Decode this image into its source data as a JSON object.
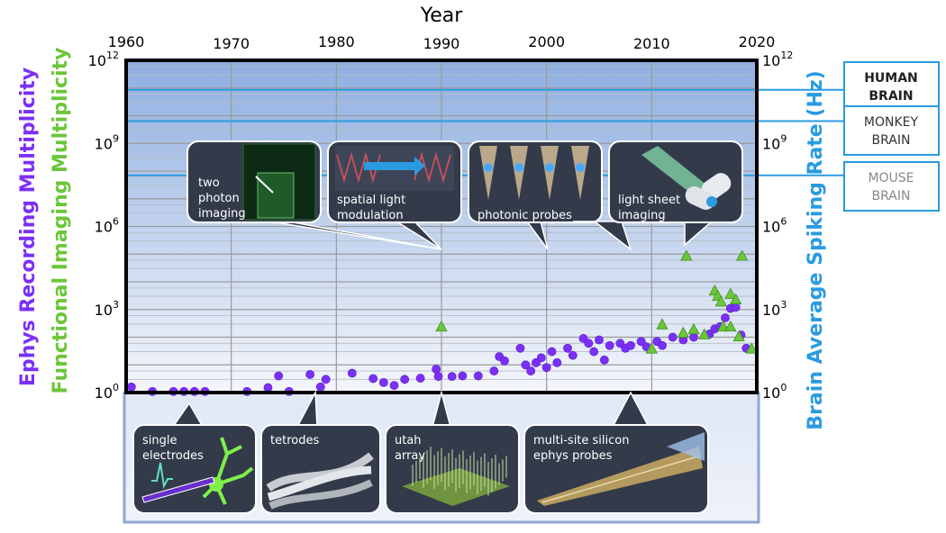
{
  "chart_data": {
    "type": "scatter",
    "title": "Year",
    "xlabel": "Year",
    "ylabel_left_1": "Ephys Recording Multiplicity",
    "ylabel_left_2": "Functional Imaging Multiplicity",
    "ylabel_right": "Brain Average Spiking Rate (Hz)",
    "x_ticks": [
      "1960",
      "1970",
      "1980",
      "1990",
      "2000",
      "2010",
      "2020"
    ],
    "xlim": [
      1960,
      2020
    ],
    "y_scale": "log",
    "ylim": [
      1,
      1000000000000
    ],
    "y_ticks": [
      {
        "value": 1,
        "base": "10",
        "exp": "0"
      },
      {
        "value": 1000,
        "base": "10",
        "exp": "3"
      },
      {
        "value": 1000000,
        "base": "10",
        "exp": "6"
      },
      {
        "value": 1000000000,
        "base": "10",
        "exp": "9"
      },
      {
        "value": 1000000000000,
        "base": "10",
        "exp": "12"
      }
    ],
    "grid": true,
    "colors": {
      "ephys": "#7b2ff7",
      "imaging": "#6cc63a",
      "brain_rate": "#2a9be0",
      "plot_top": "#8eaee0",
      "plot_bottom": "#f4f6fb"
    },
    "brain_levels": [
      {
        "name": "HUMAN BRAIN",
        "line1": "HUMAN",
        "line2": "BRAIN",
        "value": 86000000000,
        "bold": true,
        "text_color": "#222222"
      },
      {
        "name": "MONKEY BRAIN",
        "line1": "MONKEY",
        "line2": "BRAIN",
        "value": 6400000000,
        "bold": false,
        "text_color": "#333333"
      },
      {
        "name": "MOUSE BRAIN",
        "line1": "MOUSE",
        "line2": "BRAIN",
        "value": 70000000,
        "bold": false,
        "text_color": "#888888"
      }
    ],
    "series": [
      {
        "name": "Ephys Recording Multiplicity",
        "marker": "circle",
        "points": [
          {
            "x": 1960.5,
            "y": 1.6
          },
          {
            "x": 1962.5,
            "y": 1.1
          },
          {
            "x": 1964.5,
            "y": 1.1
          },
          {
            "x": 1965.5,
            "y": 1.1
          },
          {
            "x": 1966.5,
            "y": 1.1
          },
          {
            "x": 1967.5,
            "y": 1.1
          },
          {
            "x": 1971.5,
            "y": 1.1
          },
          {
            "x": 1973.5,
            "y": 1.5
          },
          {
            "x": 1974.5,
            "y": 4
          },
          {
            "x": 1975.5,
            "y": 1.1
          },
          {
            "x": 1977.5,
            "y": 4.5
          },
          {
            "x": 1978.5,
            "y": 1.6
          },
          {
            "x": 1979,
            "y": 3
          },
          {
            "x": 1981.5,
            "y": 5
          },
          {
            "x": 1983.5,
            "y": 3.2
          },
          {
            "x": 1984.5,
            "y": 2.3
          },
          {
            "x": 1985.5,
            "y": 1.8
          },
          {
            "x": 1986.5,
            "y": 3
          },
          {
            "x": 1988,
            "y": 3.3
          },
          {
            "x": 1989.5,
            "y": 7
          },
          {
            "x": 1989.7,
            "y": 3.8
          },
          {
            "x": 1991,
            "y": 3.8
          },
          {
            "x": 1992,
            "y": 4
          },
          {
            "x": 1993.5,
            "y": 4
          },
          {
            "x": 1995,
            "y": 6
          },
          {
            "x": 1995.5,
            "y": 20
          },
          {
            "x": 1996,
            "y": 14
          },
          {
            "x": 1997.5,
            "y": 40
          },
          {
            "x": 1998,
            "y": 10
          },
          {
            "x": 1998.5,
            "y": 6
          },
          {
            "x": 1999,
            "y": 12
          },
          {
            "x": 1999.5,
            "y": 18
          },
          {
            "x": 2000,
            "y": 8
          },
          {
            "x": 2000.5,
            "y": 30
          },
          {
            "x": 2001,
            "y": 12
          },
          {
            "x": 2002,
            "y": 40
          },
          {
            "x": 2002.5,
            "y": 22
          },
          {
            "x": 2003.5,
            "y": 90
          },
          {
            "x": 2004,
            "y": 60
          },
          {
            "x": 2004.5,
            "y": 30
          },
          {
            "x": 2005,
            "y": 80
          },
          {
            "x": 2005.5,
            "y": 15
          },
          {
            "x": 2006,
            "y": 50
          },
          {
            "x": 2007,
            "y": 60
          },
          {
            "x": 2007.5,
            "y": 40
          },
          {
            "x": 2008,
            "y": 50
          },
          {
            "x": 2009,
            "y": 70
          },
          {
            "x": 2009.5,
            "y": 45
          },
          {
            "x": 2010.5,
            "y": 70
          },
          {
            "x": 2011,
            "y": 50
          },
          {
            "x": 2012,
            "y": 100
          },
          {
            "x": 2013,
            "y": 80
          },
          {
            "x": 2014,
            "y": 100
          },
          {
            "x": 2015.5,
            "y": 130
          },
          {
            "x": 2016,
            "y": 200
          },
          {
            "x": 2016.5,
            "y": 240
          },
          {
            "x": 2017,
            "y": 500
          },
          {
            "x": 2017.5,
            "y": 1100
          },
          {
            "x": 2018,
            "y": 1200
          },
          {
            "x": 2018.5,
            "y": 120
          },
          {
            "x": 2019,
            "y": 40
          }
        ]
      },
      {
        "name": "Functional Imaging Multiplicity",
        "marker": "triangle",
        "points": [
          {
            "x": 1990,
            "y": 250
          },
          {
            "x": 2010,
            "y": 40
          },
          {
            "x": 2011,
            "y": 300
          },
          {
            "x": 2013,
            "y": 150
          },
          {
            "x": 2013.3,
            "y": 90000
          },
          {
            "x": 2014,
            "y": 200
          },
          {
            "x": 2015,
            "y": 130
          },
          {
            "x": 2016,
            "y": 5000
          },
          {
            "x": 2016.3,
            "y": 3200
          },
          {
            "x": 2016.6,
            "y": 2000
          },
          {
            "x": 2016.8,
            "y": 250
          },
          {
            "x": 2017.5,
            "y": 250
          },
          {
            "x": 2017.5,
            "y": 3800
          },
          {
            "x": 2018,
            "y": 2400
          },
          {
            "x": 2018.3,
            "y": 110
          },
          {
            "x": 2018.6,
            "y": 90000
          },
          {
            "x": 2019.5,
            "y": 40
          }
        ]
      }
    ],
    "callouts_top": [
      {
        "label_line1": "two",
        "label_line2": "photon",
        "label_line3": "imaging",
        "x": 1990
      },
      {
        "label_line1": "spatial light",
        "label_line2": "modulation",
        "label_line3": "",
        "x": 1990
      },
      {
        "label_line1": "photonic probes",
        "label_line2": "",
        "label_line3": "",
        "x": 2000
      },
      {
        "label_line1": "light sheet",
        "label_line2": "imaging",
        "label_line3": "",
        "x": 2007
      }
    ],
    "callouts_bottom": [
      {
        "label_line1": "single",
        "label_line2": "electrodes"
      },
      {
        "label_line1": "tetrodes",
        "label_line2": ""
      },
      {
        "label_line1": "utah",
        "label_line2": "array"
      },
      {
        "label_line1": "multi-site silicon",
        "label_line2": "ephys probes"
      }
    ]
  }
}
